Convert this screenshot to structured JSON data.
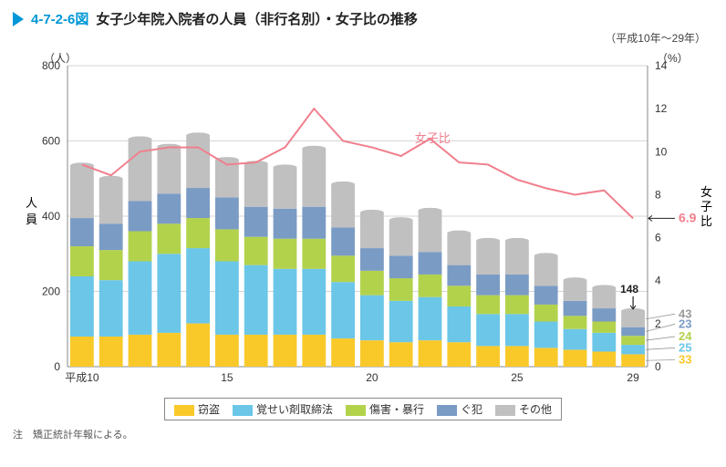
{
  "header": {
    "code": "4-7-2-6図",
    "title": "女子少年院入院者の人員（非行名別）・女子比の推移",
    "period": "（平成10年～29年）"
  },
  "axes": {
    "y_left": {
      "unit": "（人）",
      "title": "人\n員",
      "min": 0,
      "max": 800,
      "step": 200
    },
    "y_right": {
      "unit": "（%）",
      "title": "女\n子\n比",
      "min": 0,
      "max": 14,
      "step": 2
    },
    "x": {
      "start_label": "平成10",
      "ticks": [
        10,
        15,
        20,
        25,
        29
      ]
    }
  },
  "categories": [
    {
      "key": "settou",
      "label": "窃盗",
      "color": "#f9c92a"
    },
    {
      "key": "kakusei",
      "label": "覚せい剤取締法",
      "color": "#6bc6e8"
    },
    {
      "key": "shougai",
      "label": "傷害・暴行",
      "color": "#b3d24c"
    },
    {
      "key": "guhan",
      "label": "ぐ犯",
      "color": "#7a9bc4"
    },
    {
      "key": "sonota",
      "label": "その他",
      "color": "#c0c0c0"
    }
  ],
  "line": {
    "label": "女子比",
    "color": "#f07f8d"
  },
  "years": [
    10,
    11,
    12,
    13,
    14,
    15,
    16,
    17,
    18,
    19,
    20,
    21,
    22,
    23,
    24,
    25,
    26,
    27,
    28,
    29
  ],
  "stacks": [
    [
      80,
      160,
      80,
      75,
      140
    ],
    [
      80,
      150,
      80,
      70,
      120
    ],
    [
      85,
      195,
      80,
      80,
      165
    ],
    [
      90,
      210,
      80,
      80,
      125
    ],
    [
      115,
      200,
      80,
      80,
      140
    ],
    [
      85,
      195,
      85,
      85,
      100
    ],
    [
      85,
      185,
      75,
      80,
      115
    ],
    [
      85,
      175,
      80,
      80,
      110
    ],
    [
      85,
      175,
      80,
      85,
      155
    ],
    [
      75,
      150,
      70,
      75,
      115
    ],
    [
      70,
      120,
      65,
      60,
      95
    ],
    [
      65,
      110,
      60,
      60,
      95
    ],
    [
      70,
      115,
      60,
      60,
      110
    ],
    [
      65,
      95,
      55,
      55,
      85
    ],
    [
      55,
      85,
      50,
      55,
      90
    ],
    [
      55,
      85,
      50,
      55,
      90
    ],
    [
      50,
      70,
      45,
      50,
      80
    ],
    [
      45,
      55,
      35,
      40,
      55
    ],
    [
      40,
      50,
      30,
      35,
      55
    ],
    [
      33,
      25,
      24,
      23,
      43
    ]
  ],
  "ratio": [
    9.4,
    8.9,
    10.0,
    10.2,
    10.2,
    9.4,
    9.5,
    10.2,
    12.0,
    10.5,
    10.2,
    9.8,
    10.6,
    9.5,
    9.4,
    8.7,
    8.3,
    8.0,
    8.2,
    6.9
  ],
  "finals": {
    "total": 148,
    "ratio": 6.9,
    "breakdown": [
      {
        "key": "sonota",
        "value": 43,
        "color": "#9a9a9a"
      },
      {
        "key": "guhan",
        "value": 23,
        "color": "#7a9bc4"
      },
      {
        "key": "shougai",
        "value": 24,
        "color": "#b3d24c"
      },
      {
        "key": "kakusei",
        "value": 25,
        "color": "#6bc6e8"
      },
      {
        "key": "settou",
        "value": 33,
        "color": "#f9c92a"
      }
    ]
  },
  "footer": {
    "note": "注　矯正統計年報による。"
  },
  "style": {
    "grid_color": "#d6d6d6",
    "axis_color": "#888",
    "bg": "#ffffff",
    "bar_gap": 6,
    "line_width": 2
  }
}
